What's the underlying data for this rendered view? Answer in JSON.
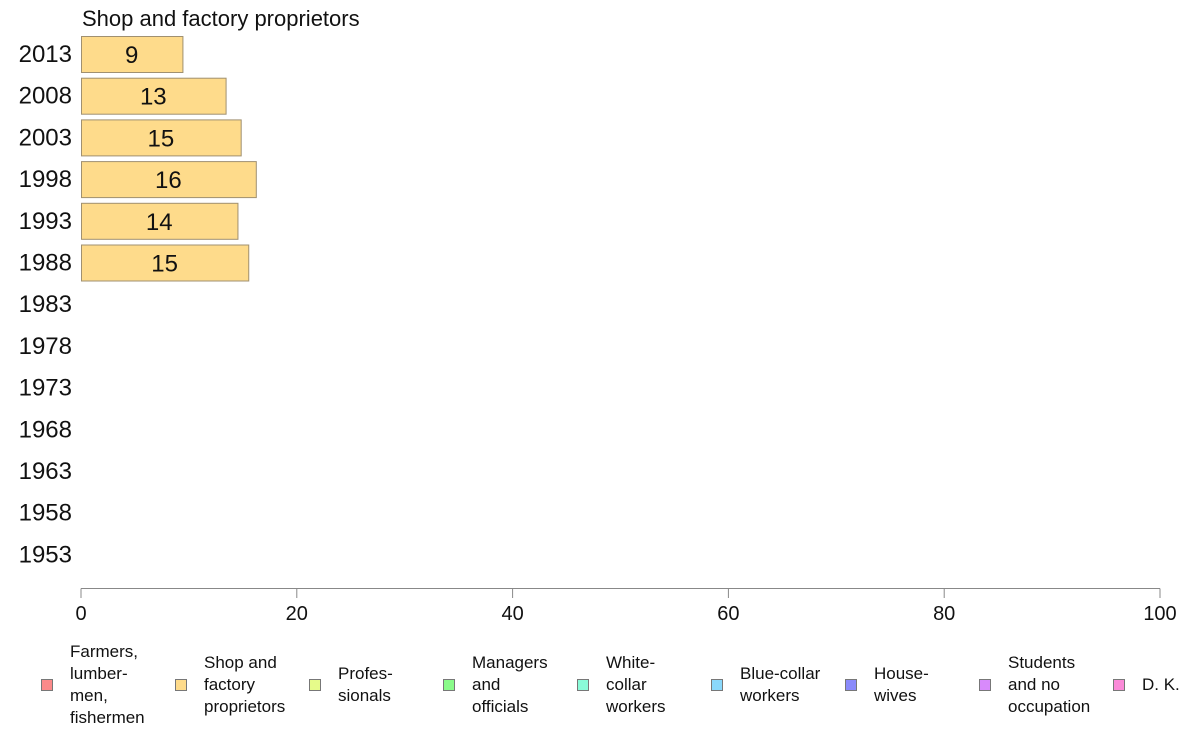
{
  "chart_data": {
    "type": "bar",
    "orientation": "horizontal",
    "title": "Shop and factory proprietors",
    "categories": [
      "2013",
      "2008",
      "2003",
      "1998",
      "1993",
      "1988",
      "1983",
      "1978",
      "1973",
      "1968",
      "1963",
      "1958",
      "1953"
    ],
    "values": [
      9,
      13,
      15,
      16,
      14,
      15,
      null,
      null,
      null,
      null,
      null,
      null,
      null
    ],
    "bar_lengths": [
      9.4,
      13.4,
      14.8,
      16.2,
      14.5,
      15.5,
      null,
      null,
      null,
      null,
      null,
      null,
      null
    ],
    "series_color": "#fedb8b",
    "xlim": [
      0,
      100
    ],
    "xticks": [
      0,
      20,
      40,
      60,
      80,
      100
    ],
    "grid": false,
    "legend_position": "bottom",
    "legend": [
      {
        "label": "Farmers,\nlumber-\nmen,\nfishermen",
        "color": "#fb8a8a"
      },
      {
        "label": "Shop and\nfactory\nproprietors",
        "color": "#fedb8b"
      },
      {
        "label": "Profes-\nsionals",
        "color": "#e6fb8a"
      },
      {
        "label": "Managers\nand\nofficials",
        "color": "#8afb8a"
      },
      {
        "label": "White-\ncollar\nworkers",
        "color": "#8afbd8"
      },
      {
        "label": "Blue-collar\nworkers",
        "color": "#8ad8fb"
      },
      {
        "label": "House-\nwives",
        "color": "#8a8afb"
      },
      {
        "label": "Students\nand no\noccupation",
        "color": "#d88afb"
      },
      {
        "label": "D. K.",
        "color": "#fb8ad8"
      }
    ]
  }
}
